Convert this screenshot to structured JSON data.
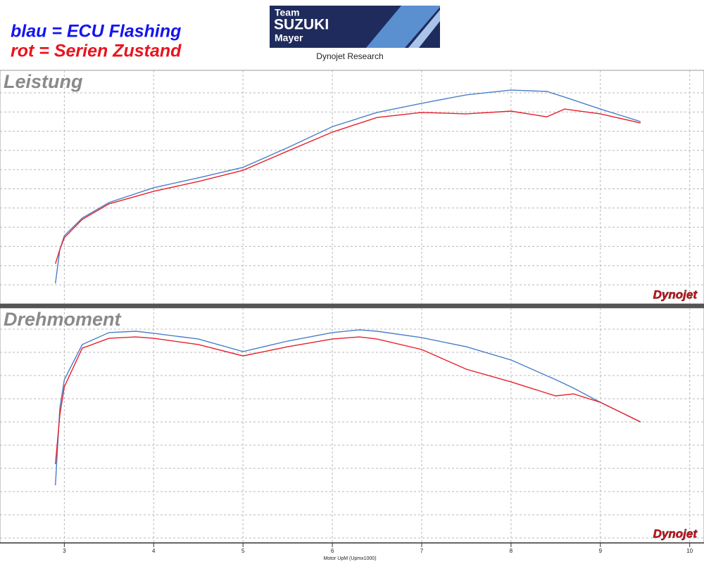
{
  "header": {
    "logo": [
      "Team",
      "SUZUKI",
      "Mayer"
    ],
    "subtitle": "Dynojet Research",
    "watermark": "Dynojet"
  },
  "chart_data": [
    {
      "type": "line",
      "title": "Leistung",
      "x": [
        2.9,
        2.95,
        3.0,
        3.2,
        3.5,
        4.0,
        4.5,
        5.0,
        5.5,
        6.0,
        6.5,
        7.0,
        7.5,
        8.0,
        8.4,
        8.6,
        9.0,
        9.45
      ],
      "series": [
        {
          "name": "blau = ECU Flashing",
          "color": "#4a7fc8",
          "values": [
            8.3,
            23.1,
            29.2,
            36.9,
            43.7,
            50.2,
            54.5,
            59.1,
            67.7,
            76.9,
            83.1,
            87.1,
            90.8,
            92.9,
            92.3,
            89.8,
            84.6,
            79.1
          ]
        },
        {
          "name": "rot = Serien Zustand",
          "color": "#e8202a",
          "values": [
            16.9,
            23.1,
            28.3,
            36.3,
            43.1,
            48.6,
            52.9,
            57.8,
            66.2,
            74.5,
            80.9,
            83.1,
            82.5,
            83.7,
            81.2,
            84.6,
            82.5,
            78.5
          ]
        }
      ],
      "xlim": [
        2.28,
        10.16
      ],
      "ylim": [
        0,
        100
      ],
      "grid": true
    },
    {
      "type": "line",
      "title": "Drehmoment",
      "xlabel": "Motor UpM (Upmx1000)",
      "x": [
        2.9,
        2.95,
        3.0,
        3.2,
        3.5,
        3.8,
        4.0,
        4.5,
        5.0,
        5.5,
        6.0,
        6.3,
        6.5,
        7.0,
        7.5,
        8.0,
        8.5,
        8.7,
        9.0,
        9.45
      ],
      "series": [
        {
          "color": "#4a7fc8",
          "values": [
            24.6,
            58.5,
            70.8,
            86.2,
            91.4,
            92.0,
            91.1,
            88.6,
            83.1,
            87.7,
            91.4,
            92.6,
            92.0,
            89.2,
            85.2,
            79.4,
            70.8,
            67.1,
            60.9,
            52.3
          ]
        },
        {
          "color": "#e8202a",
          "values": [
            33.8,
            55.4,
            67.7,
            84.6,
            88.9,
            89.5,
            88.9,
            86.2,
            81.2,
            85.2,
            88.6,
            89.5,
            88.6,
            84.0,
            75.4,
            69.8,
            63.7,
            64.6,
            60.9,
            52.3
          ]
        }
      ],
      "xlim": [
        2.28,
        10.16
      ],
      "ylim": [
        0,
        100
      ],
      "xticks": [
        3,
        4,
        5,
        6,
        7,
        8,
        9,
        10
      ],
      "grid": true
    }
  ]
}
